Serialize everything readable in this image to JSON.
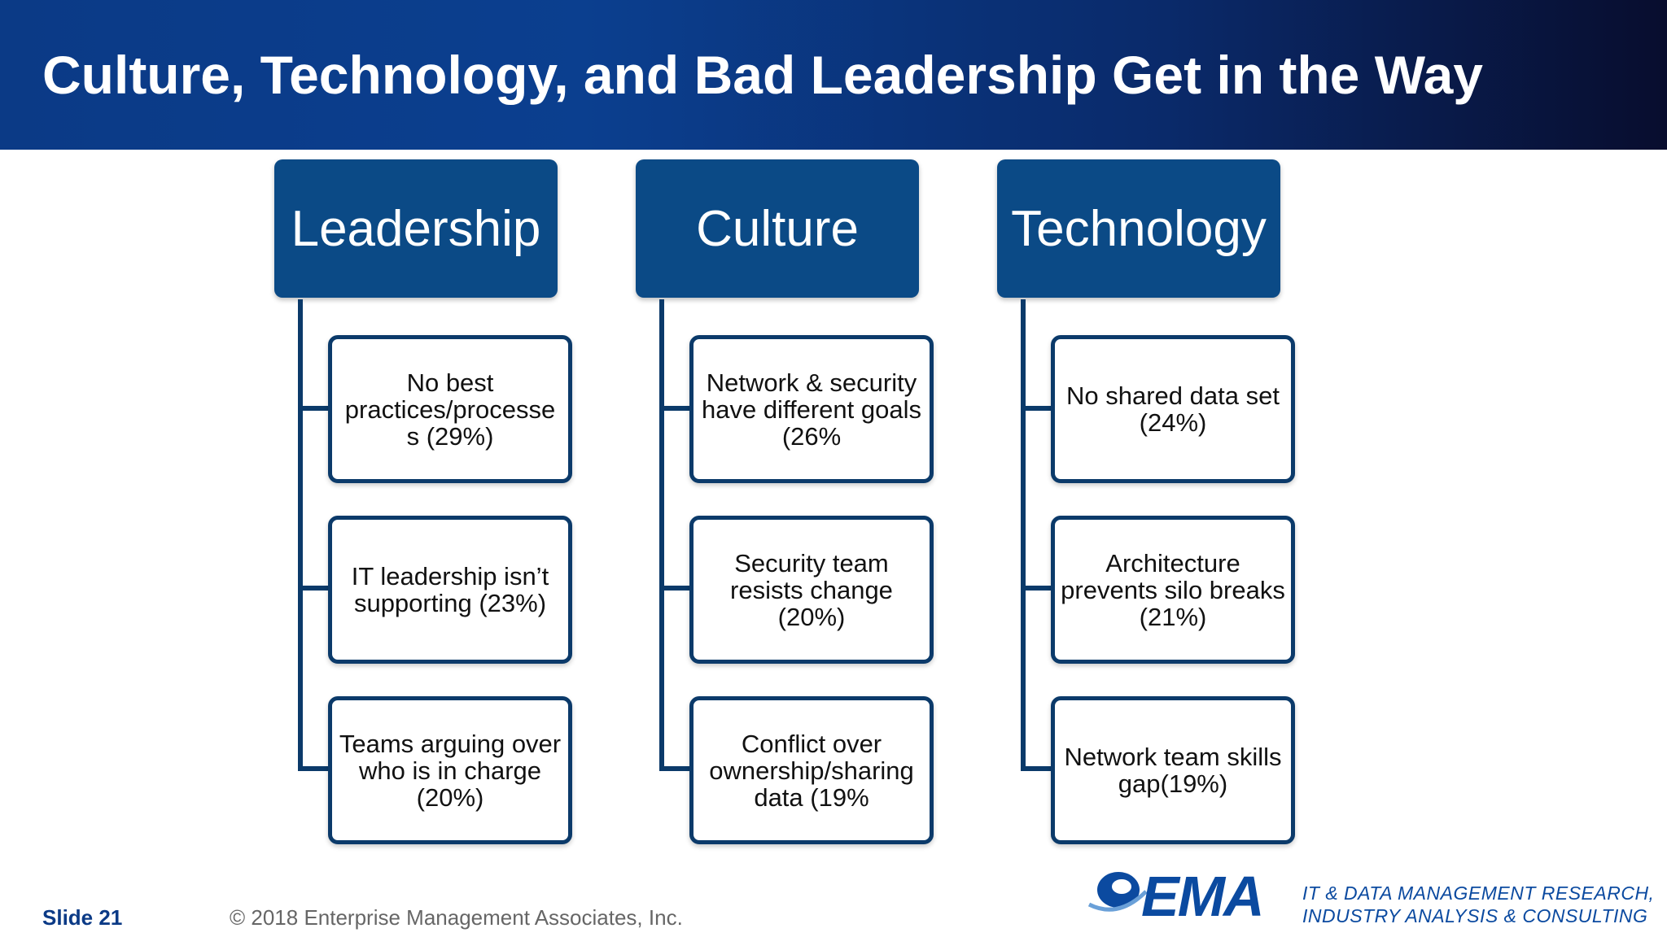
{
  "header": {
    "title": "Culture, Technology, and Bad Leadership Get in the Way"
  },
  "columns": [
    {
      "category": "Leadership",
      "items": [
        "No best practices/processe s (29%)",
        "IT leadership isn’t supporting (23%)",
        "Teams arguing over who is in charge (20%)"
      ]
    },
    {
      "category": "Culture",
      "items": [
        "Network & security have different goals (26%",
        "Security team resists change (20%)",
        "Conflict over ownership/sharing data (19%"
      ]
    },
    {
      "category": "Technology",
      "items": [
        "No shared data set (24%)",
        "Architecture prevents silo breaks (21%)",
        "Network team skills gap(19%)"
      ]
    }
  ],
  "footer": {
    "slide": "Slide 21",
    "copyright": "© 2018 Enterprise Management Associates, Inc.",
    "logo_text": "EMA",
    "tagline_1": "IT & DATA MANAGEMENT RESEARCH,",
    "tagline_2": "INDUSTRY ANALYSIS & CONSULTING"
  }
}
